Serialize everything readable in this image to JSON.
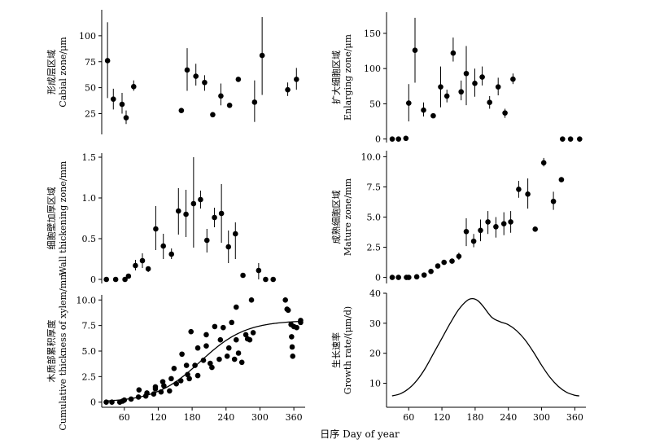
{
  "figure": {
    "xlabel": "日序 Day of year"
  },
  "chart_data": [
    {
      "id": "cabial",
      "type": "scatter",
      "error_bars": true,
      "ylabel_cn": "形成层区域",
      "ylabel_en": "Cabial zone/μm",
      "ylim": [
        5,
        125
      ],
      "yticks": [
        25,
        50,
        75,
        100
      ],
      "xlim": [
        20,
        370
      ],
      "xticks": [],
      "points": [
        {
          "x": 30,
          "y": 76,
          "err": [
            40,
            113
          ]
        },
        {
          "x": 40,
          "y": 39,
          "err": [
            29,
            49
          ]
        },
        {
          "x": 55,
          "y": 34,
          "err": [
            25,
            45
          ]
        },
        {
          "x": 62,
          "y": 21,
          "err": [
            15,
            28
          ]
        },
        {
          "x": 75,
          "y": 51,
          "err": [
            47,
            57
          ]
        },
        {
          "x": 157,
          "y": 28,
          "err": null
        },
        {
          "x": 167,
          "y": 67,
          "err": [
            47,
            88
          ]
        },
        {
          "x": 182,
          "y": 61,
          "err": [
            52,
            73
          ]
        },
        {
          "x": 197,
          "y": 55,
          "err": [
            47,
            62
          ]
        },
        {
          "x": 211,
          "y": 24,
          "err": null
        },
        {
          "x": 225,
          "y": 42,
          "err": [
            33,
            54
          ]
        },
        {
          "x": 240,
          "y": 33,
          "err": null
        },
        {
          "x": 255,
          "y": 58,
          "err": null
        },
        {
          "x": 283,
          "y": 36,
          "err": [
            17,
            57
          ]
        },
        {
          "x": 296,
          "y": 81,
          "err": [
            43,
            118
          ]
        },
        {
          "x": 340,
          "y": 48,
          "err": [
            42,
            55
          ]
        },
        {
          "x": 355,
          "y": 58,
          "err": [
            48,
            69
          ]
        }
      ]
    },
    {
      "id": "enlarging",
      "type": "scatter",
      "error_bars": true,
      "ylabel_cn": "扩大细胞区域",
      "ylabel_en": "Enlarging zone/μm",
      "ylim": [
        -5,
        180
      ],
      "yticks": [
        0,
        50,
        100,
        150
      ],
      "xlim": [
        20,
        370
      ],
      "xticks": [],
      "points": [
        {
          "x": 30,
          "y": 0,
          "err": null
        },
        {
          "x": 41,
          "y": 0,
          "err": null
        },
        {
          "x": 54,
          "y": 1,
          "err": null
        },
        {
          "x": 59,
          "y": 51,
          "err": [
            25,
            78
          ]
        },
        {
          "x": 70,
          "y": 126,
          "err": [
            80,
            172
          ]
        },
        {
          "x": 85,
          "y": 41,
          "err": [
            32,
            52
          ]
        },
        {
          "x": 102,
          "y": 33,
          "err": null
        },
        {
          "x": 115,
          "y": 74,
          "err": [
            45,
            103
          ]
        },
        {
          "x": 126,
          "y": 61,
          "err": [
            52,
            70
          ]
        },
        {
          "x": 137,
          "y": 122,
          "err": [
            110,
            144
          ]
        },
        {
          "x": 151,
          "y": 67,
          "err": [
            55,
            83
          ]
        },
        {
          "x": 160,
          "y": 93,
          "err": [
            48,
            132
          ]
        },
        {
          "x": 175,
          "y": 79,
          "err": [
            60,
            100
          ]
        },
        {
          "x": 188,
          "y": 88,
          "err": [
            76,
            103
          ]
        },
        {
          "x": 201,
          "y": 52,
          "err": [
            43,
            61
          ]
        },
        {
          "x": 216,
          "y": 74,
          "err": [
            62,
            87
          ]
        },
        {
          "x": 228,
          "y": 37,
          "err": [
            30,
            43
          ]
        },
        {
          "x": 242,
          "y": 85,
          "err": [
            78,
            93
          ]
        },
        {
          "x": 329,
          "y": 0,
          "err": null
        },
        {
          "x": 343,
          "y": 0,
          "err": null
        },
        {
          "x": 359,
          "y": 0,
          "err": null
        }
      ]
    },
    {
      "id": "wall-thickening",
      "type": "scatter",
      "error_bars": true,
      "ylabel_cn": "细胞壁加厚区域",
      "ylabel_en": "Wall thickening zone/mm",
      "ylim": [
        -0.05,
        1.55
      ],
      "yticks": [
        0,
        0.5,
        1.0,
        1.5
      ],
      "ytick_labels": [
        "0",
        "0.5",
        "1.0",
        "1.5"
      ],
      "xlim": [
        20,
        370
      ],
      "xticks": [],
      "points": [
        {
          "x": 28,
          "y": 0,
          "err": null
        },
        {
          "x": 44,
          "y": 0,
          "err": null
        },
        {
          "x": 60,
          "y": 0,
          "err": null
        },
        {
          "x": 66,
          "y": 0.04,
          "err": null
        },
        {
          "x": 78,
          "y": 0.17,
          "err": [
            0.11,
            0.24
          ]
        },
        {
          "x": 90,
          "y": 0.23,
          "err": [
            0.14,
            0.32
          ]
        },
        {
          "x": 100,
          "y": 0.13,
          "err": [
            0.09,
            0.16
          ]
        },
        {
          "x": 113,
          "y": 0.62,
          "err": [
            0.36,
            0.9
          ]
        },
        {
          "x": 126,
          "y": 0.41,
          "err": [
            0.25,
            0.56
          ]
        },
        {
          "x": 140,
          "y": 0.31,
          "err": [
            0.25,
            0.38
          ]
        },
        {
          "x": 152,
          "y": 0.84,
          "err": [
            0.55,
            1.12
          ]
        },
        {
          "x": 165,
          "y": 0.8,
          "err": [
            0.52,
            1.1
          ]
        },
        {
          "x": 178,
          "y": 0.93,
          "err": [
            0.39,
            1.5
          ]
        },
        {
          "x": 190,
          "y": 0.98,
          "err": [
            0.87,
            1.09
          ]
        },
        {
          "x": 201,
          "y": 0.48,
          "err": [
            0.33,
            0.62
          ]
        },
        {
          "x": 214,
          "y": 0.76,
          "err": [
            0.64,
            0.88
          ]
        },
        {
          "x": 226,
          "y": 0.81,
          "err": [
            0.45,
            1.17
          ]
        },
        {
          "x": 238,
          "y": 0.4,
          "err": [
            0.2,
            0.6
          ]
        },
        {
          "x": 250,
          "y": 0.56,
          "err": [
            0.25,
            0.7
          ]
        },
        {
          "x": 263,
          "y": 0.05,
          "err": null
        },
        {
          "x": 290,
          "y": 0.11,
          "err": [
            0.0,
            0.2
          ]
        },
        {
          "x": 302,
          "y": 0.0,
          "err": null
        },
        {
          "x": 315,
          "y": 0.0,
          "err": null
        }
      ]
    },
    {
      "id": "mature",
      "type": "scatter",
      "error_bars": true,
      "ylabel_cn": "成熟细胞区域",
      "ylabel_en": "Mature zone/mm",
      "ylim": [
        -0.5,
        10.5
      ],
      "yticks": [
        0,
        2.5,
        5.0,
        7.5,
        10.0
      ],
      "ytick_labels": [
        "0",
        "2.5",
        "5.0",
        "7.5",
        "10.0"
      ],
      "xlim": [
        20,
        370
      ],
      "xticks": [],
      "points": [
        {
          "x": 30,
          "y": 0,
          "err": null
        },
        {
          "x": 41,
          "y": 0,
          "err": null
        },
        {
          "x": 55,
          "y": 0,
          "err": null
        },
        {
          "x": 59,
          "y": 0,
          "err": null
        },
        {
          "x": 73,
          "y": 0.05,
          "err": null
        },
        {
          "x": 86,
          "y": 0.2,
          "err": null
        },
        {
          "x": 98,
          "y": 0.5,
          "err": null
        },
        {
          "x": 110,
          "y": 0.95,
          "err": null
        },
        {
          "x": 121,
          "y": 1.25,
          "err": null
        },
        {
          "x": 135,
          "y": 1.35,
          "err": null
        },
        {
          "x": 147,
          "y": 1.75,
          "err": [
            1.45,
            2.05
          ]
        },
        {
          "x": 160,
          "y": 3.8,
          "err": [
            2.6,
            4.9
          ]
        },
        {
          "x": 173,
          "y": 3.0,
          "err": [
            2.5,
            3.6
          ]
        },
        {
          "x": 185,
          "y": 3.9,
          "err": [
            3.0,
            4.8
          ]
        },
        {
          "x": 198,
          "y": 4.6,
          "err": [
            3.6,
            5.5
          ]
        },
        {
          "x": 212,
          "y": 4.2,
          "err": [
            3.3,
            5.0
          ]
        },
        {
          "x": 226,
          "y": 4.45,
          "err": [
            3.5,
            5.4
          ]
        },
        {
          "x": 238,
          "y": 4.6,
          "err": [
            3.7,
            5.5
          ]
        },
        {
          "x": 252,
          "y": 7.3,
          "err": [
            6.6,
            8.0
          ]
        },
        {
          "x": 268,
          "y": 6.9,
          "err": [
            5.7,
            8.2
          ]
        },
        {
          "x": 281,
          "y": 4.0,
          "err": null
        },
        {
          "x": 296,
          "y": 9.5,
          "err": [
            9.2,
            9.9
          ]
        },
        {
          "x": 313,
          "y": 6.3,
          "err": [
            5.6,
            7.1
          ]
        },
        {
          "x": 327,
          "y": 8.1,
          "err": null
        }
      ]
    },
    {
      "id": "cumulative",
      "type": "scatter",
      "error_bars": false,
      "fitted_curve": true,
      "ylabel_cn": "木质部累积厚度",
      "ylabel_en": "Cumulative thickness of xylem/mm",
      "ylim": [
        -0.5,
        10.5
      ],
      "yticks": [
        0,
        2.5,
        5.0,
        7.5,
        10.0
      ],
      "ytick_labels": [
        "0",
        "2.5",
        "5.0",
        "7.5",
        "10.0"
      ],
      "xlim": [
        20,
        380
      ],
      "xticks": [
        60,
        120,
        180,
        240,
        300,
        360
      ],
      "points": [
        {
          "x": 28,
          "y": 0
        },
        {
          "x": 38,
          "y": 0
        },
        {
          "x": 52,
          "y": 0
        },
        {
          "x": 57,
          "y": 0.1
        },
        {
          "x": 60,
          "y": 0.2
        },
        {
          "x": 72,
          "y": 0.3
        },
        {
          "x": 85,
          "y": 0.5
        },
        {
          "x": 86,
          "y": 1.2
        },
        {
          "x": 98,
          "y": 0.6
        },
        {
          "x": 100,
          "y": 0.9
        },
        {
          "x": 112,
          "y": 0.8
        },
        {
          "x": 115,
          "y": 1.3
        },
        {
          "x": 115,
          "y": 1.5
        },
        {
          "x": 125,
          "y": 1.0
        },
        {
          "x": 128,
          "y": 2.0
        },
        {
          "x": 130,
          "y": 1.6
        },
        {
          "x": 140,
          "y": 1.1
        },
        {
          "x": 143,
          "y": 2.3
        },
        {
          "x": 148,
          "y": 3.3
        },
        {
          "x": 152,
          "y": 1.8
        },
        {
          "x": 160,
          "y": 2.1
        },
        {
          "x": 162,
          "y": 4.7
        },
        {
          "x": 170,
          "y": 3.6
        },
        {
          "x": 172,
          "y": 2.7
        },
        {
          "x": 175,
          "y": 2.3
        },
        {
          "x": 178,
          "y": 6.9
        },
        {
          "x": 185,
          "y": 3.6
        },
        {
          "x": 190,
          "y": 2.6
        },
        {
          "x": 190,
          "y": 5.3
        },
        {
          "x": 200,
          "y": 4.1
        },
        {
          "x": 205,
          "y": 5.5
        },
        {
          "x": 205,
          "y": 6.6
        },
        {
          "x": 212,
          "y": 3.8
        },
        {
          "x": 215,
          "y": 3.4
        },
        {
          "x": 220,
          "y": 7.4
        },
        {
          "x": 228,
          "y": 4.2
        },
        {
          "x": 230,
          "y": 6.1
        },
        {
          "x": 235,
          "y": 7.3
        },
        {
          "x": 242,
          "y": 4.5
        },
        {
          "x": 245,
          "y": 5.3
        },
        {
          "x": 250,
          "y": 7.8
        },
        {
          "x": 255,
          "y": 4.2
        },
        {
          "x": 258,
          "y": 6.1
        },
        {
          "x": 258,
          "y": 9.3
        },
        {
          "x": 262,
          "y": 4.8
        },
        {
          "x": 268,
          "y": 3.9
        },
        {
          "x": 275,
          "y": 6.6
        },
        {
          "x": 278,
          "y": 6.2
        },
        {
          "x": 282,
          "y": 6.1
        },
        {
          "x": 285,
          "y": 10.0
        },
        {
          "x": 288,
          "y": 6.8
        },
        {
          "x": 345,
          "y": 10.0
        },
        {
          "x": 348,
          "y": 9.1
        },
        {
          "x": 350,
          "y": 9.0
        },
        {
          "x": 355,
          "y": 7.6
        },
        {
          "x": 356,
          "y": 6.4
        },
        {
          "x": 357,
          "y": 5.4
        },
        {
          "x": 358,
          "y": 4.5
        },
        {
          "x": 360,
          "y": 7.4
        },
        {
          "x": 365,
          "y": 7.3
        },
        {
          "x": 372,
          "y": 8.0
        },
        {
          "x": 372,
          "y": 7.8
        }
      ],
      "curve": {
        "x_start": 28,
        "x_end": 372,
        "k": 0.025,
        "mid": 195,
        "cap": 8.0
      }
    },
    {
      "id": "growth-rate",
      "type": "line",
      "ylabel_cn": "生长速率",
      "ylabel_en": "Growth rate/(μm/d)",
      "ylim": [
        2,
        40
      ],
      "yticks": [
        10,
        20,
        30,
        40
      ],
      "xlim": [
        20,
        380
      ],
      "xticks": [
        60,
        120,
        180,
        240,
        300,
        360
      ],
      "x": [
        30,
        45,
        60,
        75,
        90,
        105,
        120,
        135,
        150,
        165,
        175,
        185,
        195,
        210,
        225,
        240,
        255,
        270,
        285,
        300,
        315,
        330,
        345,
        360,
        368
      ],
      "y": [
        5.8,
        6.5,
        8.2,
        11,
        15,
        20,
        25,
        30,
        34.5,
        37.5,
        38.2,
        37.5,
        35.5,
        32,
        30.5,
        29.5,
        27.5,
        24.5,
        20.5,
        16,
        12,
        9,
        7,
        6,
        5.8
      ]
    }
  ]
}
